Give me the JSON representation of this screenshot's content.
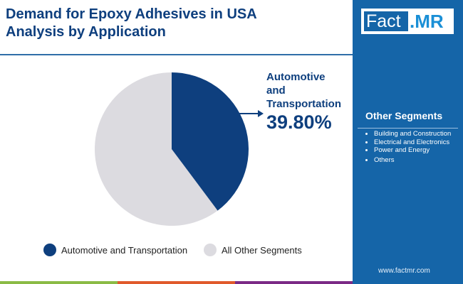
{
  "title_line1": "Demand for Epoxy Adhesives in USA",
  "title_line2": "Analysis by Application",
  "logo": {
    "part1": "Fact",
    "part2": ".MR"
  },
  "other_segments": {
    "heading": "Other Segments",
    "items": [
      "Building and Construction",
      "Electrical and Electronics",
      "Power and Energy",
      "Others"
    ]
  },
  "website": "www.factmr.com",
  "callout": {
    "line1": "Automotive",
    "line2": "and",
    "line3": "Transportation",
    "value": "39.80%"
  },
  "colors": {
    "primary": "#0e3f7e",
    "other": "#dcdbe0",
    "sidebar": "#1565a8"
  },
  "chart_data": {
    "type": "pie",
    "slices": [
      {
        "label": "Automotive and Transportation",
        "value": 39.8,
        "color": "#0e3f7e"
      },
      {
        "label": "All Other Segments",
        "value": 60.2,
        "color": "#dcdbe0"
      }
    ],
    "legend": [
      "Automotive and Transportation",
      "All Other Segments"
    ],
    "legend_position": "bottom"
  }
}
